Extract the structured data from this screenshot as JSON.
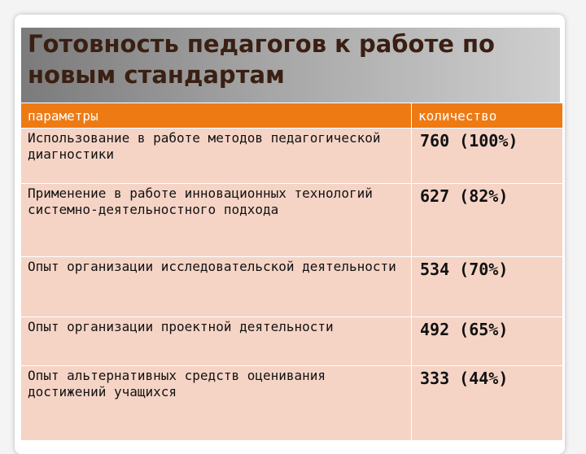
{
  "slide": {
    "title_lines": [
      "Готовность педагогов к работе по",
      "новым стандартам"
    ]
  },
  "table": {
    "headers": [
      "параметры",
      "количество"
    ],
    "rows": [
      {
        "param": "Использование в работе методов педагогической диагностики",
        "value": "760 (100%)"
      },
      {
        "param": "Применение в работе инновационных технологий системно-деятельностного подхода",
        "value": "627 (82%)"
      },
      {
        "param": "Опыт организации  исследовательской деятельности",
        "value": "534 (70%)"
      },
      {
        "param": "Опыт организации   проектной деятельности",
        "value": "492 (65%)"
      },
      {
        "param": "Опыт альтернативных средств оценивания достижений учащихся",
        "value": "333 (44%)"
      }
    ]
  },
  "colors": {
    "header_bg": "#ee7a14",
    "row_bg": "#f5d4c6",
    "title_text": "#3a1f12"
  }
}
